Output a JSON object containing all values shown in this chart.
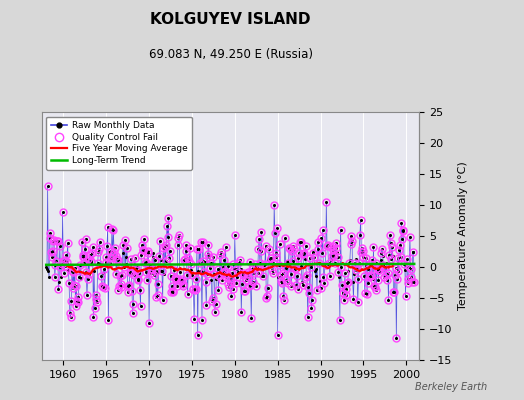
{
  "title": "KOLGUYEV ISLAND",
  "subtitle": "69.083 N, 49.250 E (Russia)",
  "ylabel": "Temperature Anomaly (°C)",
  "watermark": "Berkeley Earth",
  "ylim": [
    -15,
    25
  ],
  "yticks": [
    -15,
    -10,
    -5,
    0,
    5,
    10,
    15,
    20,
    25
  ],
  "xlim": [
    1957.5,
    2001.5
  ],
  "xticks": [
    1960,
    1965,
    1970,
    1975,
    1980,
    1985,
    1990,
    1995,
    2000
  ],
  "raw_color": "#4444dd",
  "raw_marker_color": "#000000",
  "qc_color": "#ff44ff",
  "moving_avg_color": "#ff0000",
  "trend_color": "#00bb00",
  "bg_color": "#d8d8d8",
  "plot_bg_color": "#e8e8f0",
  "grid_color": "#ffffff",
  "legend_labels": [
    "Raw Monthly Data",
    "Quality Control Fail",
    "Five Year Moving Average",
    "Long-Term Trend"
  ],
  "seed": 12345
}
